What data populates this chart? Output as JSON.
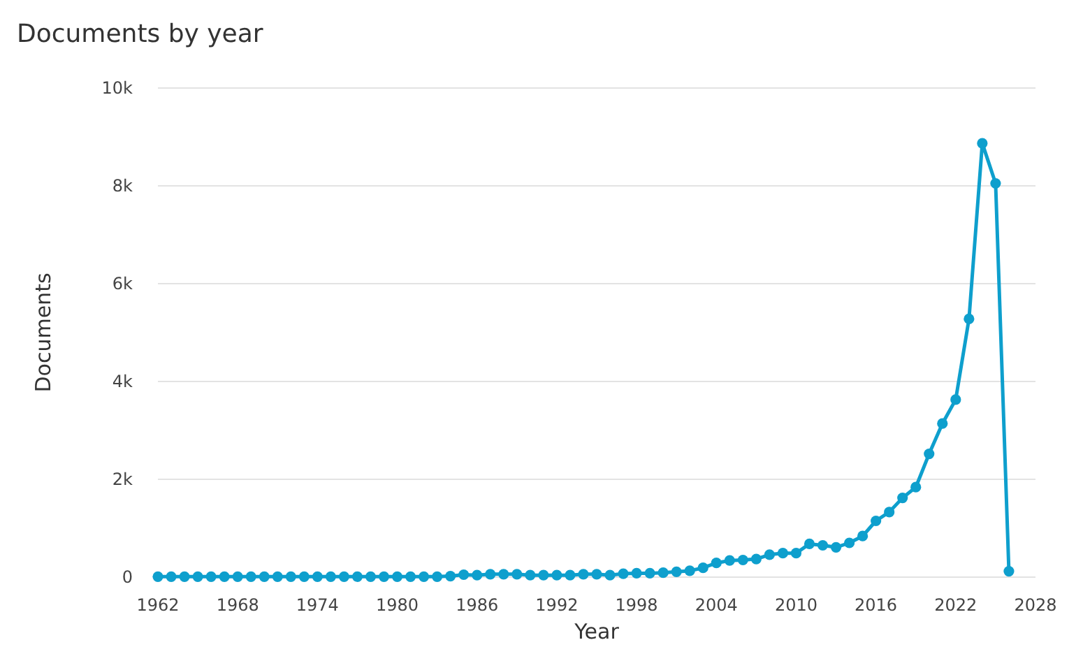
{
  "chart_data": {
    "type": "line",
    "title": "Documents by year",
    "xlabel": "Year",
    "ylabel": "Documents",
    "x": [
      1962,
      1963,
      1964,
      1965,
      1966,
      1967,
      1968,
      1969,
      1970,
      1971,
      1972,
      1973,
      1974,
      1975,
      1976,
      1977,
      1978,
      1979,
      1980,
      1981,
      1982,
      1983,
      1984,
      1985,
      1986,
      1987,
      1988,
      1989,
      1990,
      1991,
      1992,
      1993,
      1994,
      1995,
      1996,
      1997,
      1998,
      1999,
      2000,
      2001,
      2002,
      2003,
      2004,
      2005,
      2006,
      2007,
      2008,
      2009,
      2010,
      2011,
      2012,
      2013,
      2014,
      2015,
      2016,
      2017,
      2018,
      2019,
      2020,
      2021,
      2022,
      2023,
      2024,
      2025,
      2026
    ],
    "series": [
      {
        "color": "#0e9fcd",
        "values": [
          10,
          10,
          10,
          10,
          10,
          10,
          10,
          10,
          10,
          10,
          10,
          10,
          10,
          10,
          10,
          10,
          10,
          10,
          10,
          10,
          10,
          10,
          20,
          50,
          40,
          60,
          60,
          60,
          40,
          40,
          40,
          40,
          60,
          60,
          40,
          70,
          80,
          80,
          90,
          110,
          130,
          190,
          290,
          340,
          350,
          370,
          460,
          490,
          490,
          680,
          650,
          610,
          700,
          840,
          1150,
          1330,
          1620,
          1840,
          2520,
          3140,
          3630,
          5280,
          8870,
          8050,
          120
        ]
      }
    ],
    "xlim": [
      1962,
      2028
    ],
    "xticks": [
      1962,
      1968,
      1974,
      1980,
      1986,
      1992,
      1998,
      2004,
      2010,
      2016,
      2022,
      2028
    ],
    "ylim": [
      0,
      10000
    ],
    "yticks": [
      0,
      {
        "value": 2000,
        "label": "2k"
      },
      {
        "value": 4000,
        "label": "4k"
      },
      {
        "value": 6000,
        "label": "6k"
      },
      {
        "value": 8000,
        "label": "8k"
      },
      {
        "value": 10000,
        "label": "10k"
      }
    ],
    "grid": "y",
    "marker": "circle",
    "line_style": "solid"
  }
}
